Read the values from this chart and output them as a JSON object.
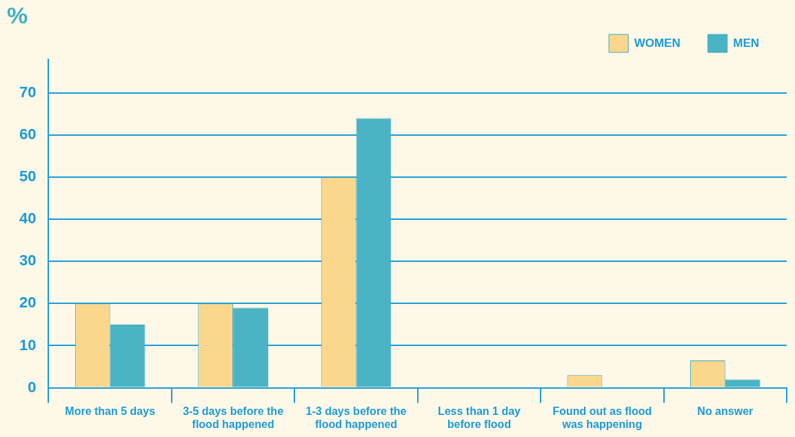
{
  "chart_data": {
    "type": "bar",
    "ylabel": "%",
    "categories": [
      "More than 5 days",
      "3-5 days before the flood happened",
      "1-3 days before the flood happened",
      "Less than 1 day before flood",
      "Found out as flood was happening",
      "No answer"
    ],
    "series": [
      {
        "name": "WOMEN",
        "color": "#fbd78e",
        "values": [
          20,
          20,
          50,
          0,
          3,
          6.5
        ]
      },
      {
        "name": "MEN",
        "color": "#4ab3c4",
        "values": [
          15,
          19,
          64,
          0,
          0,
          2
        ]
      }
    ],
    "ylim": [
      0,
      78
    ],
    "yticks": [
      0,
      10,
      20,
      30,
      40,
      50,
      60,
      70
    ],
    "grid": "y",
    "legend": "top right"
  }
}
